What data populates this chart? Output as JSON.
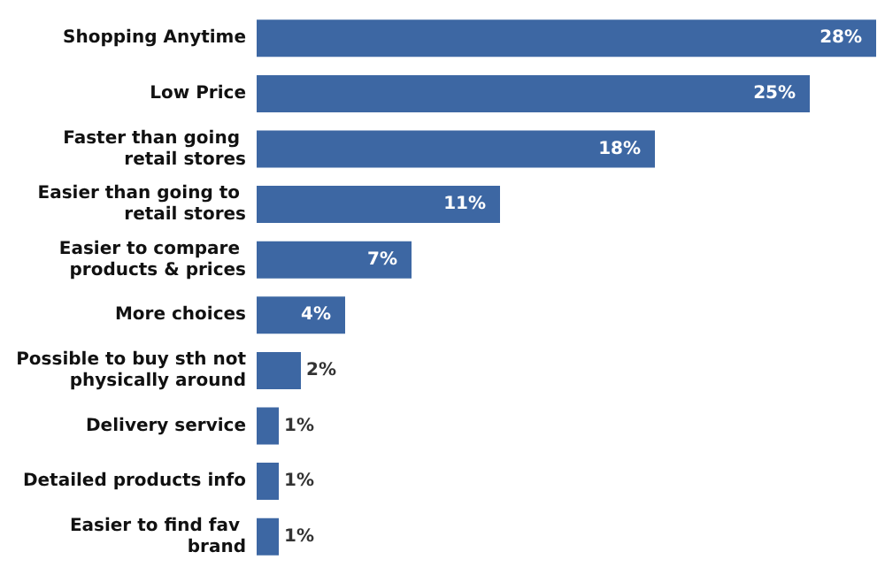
{
  "chart_data": {
    "type": "bar",
    "orientation": "horizontal",
    "categories": [
      "Shopping Anytime",
      "Low Price",
      "Faster than going retail stores",
      "Easier than going to retail stores",
      "Easier to compare products & prices",
      "More choices",
      "Possible to buy sth not physically around",
      "Delivery service",
      "Detailed products info",
      "Easier to find fav brand"
    ],
    "values": [
      28,
      25,
      18,
      11,
      7,
      4,
      2,
      1,
      1,
      1
    ],
    "value_labels": [
      "28%",
      "25%",
      "18%",
      "11%",
      "7%",
      "4%",
      "2%",
      "1%",
      "1%",
      "1%"
    ],
    "color": "#3d67a3",
    "xlim": [
      0,
      28
    ],
    "tick_labels": "y"
  }
}
